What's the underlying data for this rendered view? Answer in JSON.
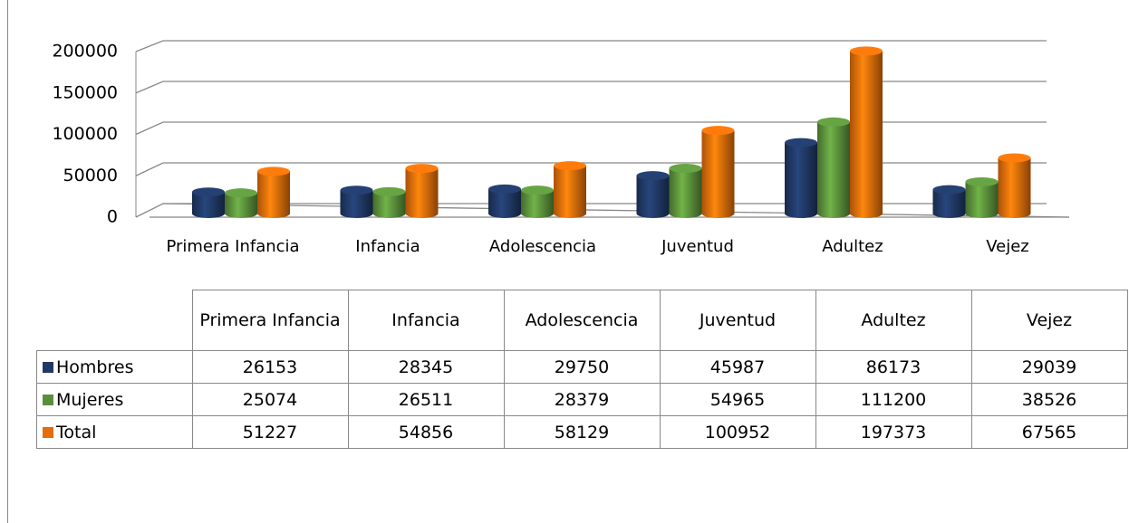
{
  "chart_data": {
    "type": "bar",
    "categories": [
      "Primera Infancia",
      "Infancia",
      "Adolescencia",
      "Juventud",
      "Adultez",
      "Vejez"
    ],
    "series": [
      {
        "name": "Hombres",
        "color": "#203864",
        "values": [
          26153,
          28345,
          29750,
          45987,
          86173,
          29039
        ]
      },
      {
        "name": "Mujeres",
        "color": "#5a8f3a",
        "values": [
          25074,
          26511,
          28379,
          54965,
          111200,
          38526
        ]
      },
      {
        "name": "Total",
        "color": "#e46c0a",
        "values": [
          51227,
          54856,
          58129,
          100952,
          197373,
          67565
        ]
      }
    ],
    "ylim": [
      0,
      200000
    ],
    "yticks": [
      0,
      50000,
      100000,
      150000,
      200000
    ],
    "grid": true
  }
}
